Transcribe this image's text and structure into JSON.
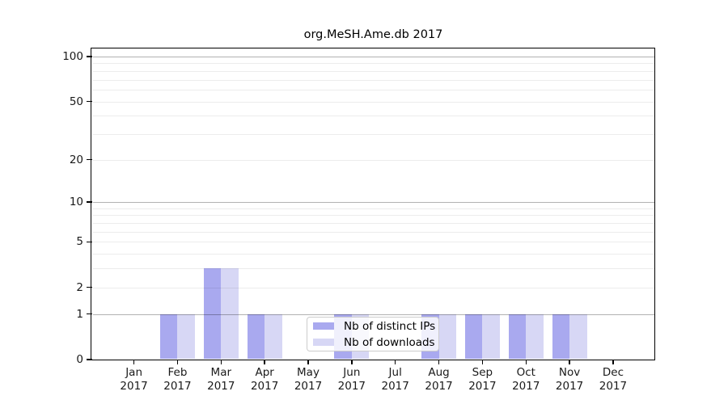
{
  "figure": {
    "background": "#ffffff"
  },
  "chart_data": {
    "type": "bar",
    "title": "org.MeSH.Ame.db 2017",
    "categories": [
      {
        "month": "Jan",
        "year": "2017"
      },
      {
        "month": "Feb",
        "year": "2017"
      },
      {
        "month": "Mar",
        "year": "2017"
      },
      {
        "month": "Apr",
        "year": "2017"
      },
      {
        "month": "May",
        "year": "2017"
      },
      {
        "month": "Jun",
        "year": "2017"
      },
      {
        "month": "Jul",
        "year": "2017"
      },
      {
        "month": "Aug",
        "year": "2017"
      },
      {
        "month": "Sep",
        "year": "2017"
      },
      {
        "month": "Oct",
        "year": "2017"
      },
      {
        "month": "Nov",
        "year": "2017"
      },
      {
        "month": "Dec",
        "year": "2017"
      }
    ],
    "series": [
      {
        "name": "Nb of distinct IPs",
        "color": "#a9a9ef",
        "values": [
          0,
          1,
          3,
          1,
          0,
          1,
          0,
          1,
          1,
          1,
          1,
          0
        ]
      },
      {
        "name": "Nb of downloads",
        "color": "#d7d7f5",
        "values": [
          0,
          1,
          3,
          1,
          0,
          1,
          0,
          1,
          1,
          1,
          1,
          0
        ]
      }
    ],
    "yscale": "log1p",
    "ylim": [
      0,
      114
    ],
    "yticks": [
      0,
      1,
      2,
      5,
      10,
      20,
      50,
      100
    ],
    "grid": {
      "major_values": [
        1,
        10,
        100
      ],
      "minor_values": [
        2,
        3,
        4,
        5,
        6,
        7,
        8,
        9,
        20,
        30,
        40,
        50,
        60,
        70,
        80,
        90
      ],
      "major_color": "#b0b0b0",
      "minor_color": "#ececec"
    },
    "legend_position": "lower center"
  }
}
